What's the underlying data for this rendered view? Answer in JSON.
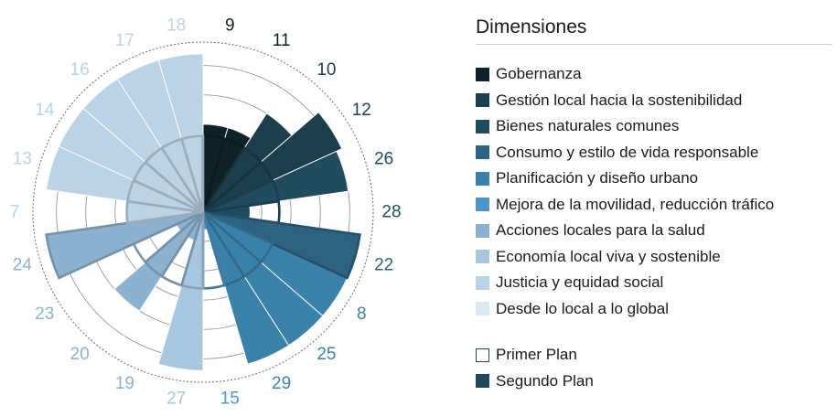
{
  "chart_data": {
    "type": "radial-bar",
    "title": "",
    "rmax": 29,
    "rings": [
      5,
      10,
      15,
      20,
      25
    ],
    "legend_title": "Dimensiones",
    "dimensions": [
      {
        "name": "Gobernanza",
        "color": "#0f2227"
      },
      {
        "name": "Gestión local hacia la sostenibilidad",
        "color": "#1d3e4c"
      },
      {
        "name": "Bienes naturales comunes",
        "color": "#214c5e"
      },
      {
        "name": "Consumo y estilo de vida responsable",
        "color": "#2d6280"
      },
      {
        "name": "Planificación y diseño urbano",
        "color": "#3b82ab"
      },
      {
        "name": "Mejora de la movilidad, reducción tráfico",
        "color": "#4e96c8"
      },
      {
        "name": "Acciones locales para la salud",
        "color": "#8db2cf"
      },
      {
        "name": "Economía local viva y sostenible",
        "color": "#a9c6df"
      },
      {
        "name": "Justicia y equidad social",
        "color": "#bcd3e6"
      },
      {
        "name": "Desde lo local a lo global",
        "color": "#dde8f1"
      }
    ],
    "plans": {
      "first": "Primer Plan",
      "second": "Segundo Plan"
    },
    "sectors": [
      {
        "label": "9",
        "dim": 0,
        "second": 15,
        "first": 13
      },
      {
        "label": "11",
        "dim": 0,
        "second": 15,
        "first": 13
      },
      {
        "label": "10",
        "dim": 1,
        "second": 20,
        "first": 13
      },
      {
        "label": "12",
        "dim": 1,
        "second": 26,
        "first": 13
      },
      {
        "label": "26",
        "dim": 2,
        "second": 25,
        "first": 13
      },
      {
        "label": "28",
        "dim": 2,
        "second": 8,
        "first": 13
      },
      {
        "label": "22",
        "dim": 3,
        "second": 27,
        "first": 27
      },
      {
        "label": "8",
        "dim": 4,
        "second": 27,
        "first": 13
      },
      {
        "label": "25",
        "dim": 4,
        "second": 27,
        "first": 13
      },
      {
        "label": "29",
        "dim": 4,
        "second": 27,
        "first": 13
      },
      {
        "label": "15",
        "dim": 5,
        "second": 3,
        "first": 13
      },
      {
        "label": "27",
        "dim": 7,
        "second": 27,
        "first": 13
      },
      {
        "label": "19",
        "dim": 6,
        "second": 5,
        "first": 13
      },
      {
        "label": "20",
        "dim": 6,
        "second": 20,
        "first": 13
      },
      {
        "label": "23",
        "dim": 6,
        "second": 5,
        "first": 13
      },
      {
        "label": "24",
        "dim": 6,
        "second": 27,
        "first": 27
      },
      {
        "label": "7",
        "dim": 8,
        "second": 13,
        "first": 13
      },
      {
        "label": "13",
        "dim": 8,
        "second": 27,
        "first": 13
      },
      {
        "label": "14",
        "dim": 8,
        "second": 27,
        "first": 13
      },
      {
        "label": "16",
        "dim": 8,
        "second": 27,
        "first": 13
      },
      {
        "label": "17",
        "dim": 8,
        "second": 27,
        "first": 13
      },
      {
        "label": "18",
        "dim": 8,
        "second": 27,
        "first": 13
      }
    ]
  }
}
